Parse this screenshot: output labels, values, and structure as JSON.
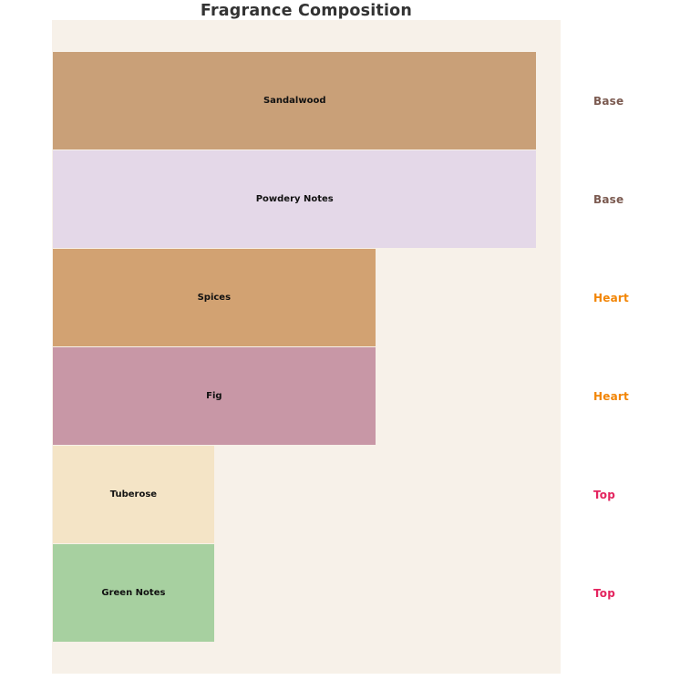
{
  "title": "Fragrance Composition",
  "chart_data": {
    "type": "bar",
    "orientation": "horizontal",
    "title": "Fragrance Composition",
    "xlabel": "",
    "ylabel": "",
    "xlim": [
      0,
      31.5
    ],
    "grid": false,
    "axes_visible": false,
    "legend": "none",
    "plot_background_color": "#f7f1e9",
    "page_background_color": "#ffffff",
    "title_color": "#333333",
    "bar_label_color": "#111111",
    "categories": [
      "Sandalwood",
      "Powdery Notes",
      "Spices",
      "Fig",
      "Tuberose",
      "Green Notes"
    ],
    "values": [
      30,
      30,
      20,
      20,
      10,
      10
    ],
    "bars": [
      {
        "label": "Sandalwood",
        "value": 30,
        "color": "#c9a078",
        "category": "Base",
        "category_color": "#7b5a50"
      },
      {
        "label": "Powdery Notes",
        "value": 30,
        "color": "#e4d8e8",
        "category": "Base",
        "category_color": "#7b5a50"
      },
      {
        "label": "Spices",
        "value": 20,
        "color": "#d2a272",
        "category": "Heart",
        "category_color": "#f28505"
      },
      {
        "label": "Fig",
        "value": 20,
        "color": "#c897a6",
        "category": "Heart",
        "category_color": "#f28505"
      },
      {
        "label": "Tuberose",
        "value": 10,
        "color": "#f4e4c6",
        "category": "Top",
        "category_color": "#e4245f"
      },
      {
        "label": "Green Notes",
        "value": 10,
        "color": "#a7d0a0",
        "category": "Top",
        "category_color": "#e4245f"
      }
    ]
  }
}
